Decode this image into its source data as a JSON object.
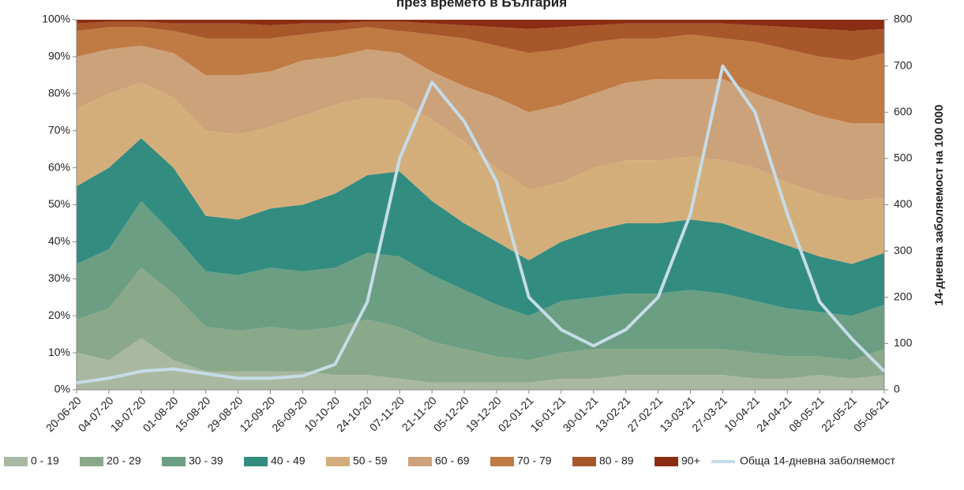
{
  "chart_data": {
    "type": "stacked_area",
    "title": "през времето в България",
    "y2label": "14-дневна заболяемост на 100 000",
    "categories": [
      "20-06-20",
      "04-07-20",
      "18-07-20",
      "01-08-20",
      "15-08-20",
      "29-08-20",
      "12-09-20",
      "26-09-20",
      "10-10-20",
      "24-10-20",
      "07-11-20",
      "21-11-20",
      "05-12-20",
      "19-12-20",
      "02-01-21",
      "16-01-21",
      "30-01-21",
      "13-02-21",
      "27-02-21",
      "13-03-21",
      "27-03-21",
      "10-04-21",
      "24-04-21",
      "08-05-21",
      "22-05-21",
      "05-06-21"
    ],
    "series": [
      {
        "name": "0 - 19",
        "color": "#a9b8a0",
        "values": [
          10,
          8,
          14,
          8,
          5,
          5,
          5,
          5,
          4,
          4,
          3,
          2,
          2,
          2,
          2,
          3,
          3,
          4,
          4,
          4,
          4,
          3,
          3,
          4,
          3,
          4
        ]
      },
      {
        "name": "20 - 29",
        "color": "#8aa88a",
        "values": [
          9,
          14,
          19,
          18,
          12,
          11,
          12,
          11,
          13,
          15,
          14,
          11,
          9,
          7,
          6,
          7,
          8,
          7,
          7,
          7,
          7,
          7,
          6,
          5,
          5,
          7
        ]
      },
      {
        "name": "30 - 39",
        "color": "#6b9e82",
        "values": [
          15,
          16,
          18,
          16,
          15,
          15,
          16,
          16,
          16,
          18,
          19,
          18,
          16,
          14,
          12,
          14,
          14,
          15,
          15,
          16,
          15,
          14,
          13,
          12,
          12,
          12
        ]
      },
      {
        "name": "40 - 49",
        "color": "#338c80",
        "values": [
          21,
          22,
          17,
          18,
          15,
          15,
          16,
          18,
          20,
          21,
          23,
          20,
          18,
          17,
          15,
          16,
          18,
          19,
          19,
          19,
          19,
          18,
          17,
          15,
          14,
          14
        ]
      },
      {
        "name": "50 - 59",
        "color": "#d4ae7a",
        "values": [
          21,
          20,
          15,
          19,
          23,
          23,
          22,
          24,
          24,
          21,
          19,
          22,
          22,
          20,
          19,
          16,
          17,
          17,
          17,
          17,
          17,
          18,
          17,
          17,
          17,
          15
        ]
      },
      {
        "name": "60 - 69",
        "color": "#cca27a",
        "values": [
          14,
          12,
          10,
          12,
          15,
          16,
          15,
          15,
          13,
          13,
          13,
          13,
          15,
          19,
          21,
          21,
          20,
          21,
          22,
          21,
          22,
          20,
          21,
          21,
          21,
          20
        ]
      },
      {
        "name": "70 - 79",
        "color": "#c07a44",
        "values": [
          7,
          6,
          5,
          6,
          10,
          10,
          9,
          7,
          7,
          6,
          6,
          10,
          13,
          14,
          16,
          15,
          14,
          12,
          11,
          12,
          11,
          14,
          15,
          16,
          17,
          19
        ]
      },
      {
        "name": "80 - 89",
        "color": "#a7572a",
        "values": [
          2,
          1.5,
          1.5,
          2,
          4,
          4,
          3.5,
          3,
          2,
          1.5,
          2.5,
          3,
          3.5,
          5,
          6.5,
          6,
          4.5,
          4,
          4,
          3,
          4,
          4.5,
          6,
          7.5,
          8,
          6.5
        ]
      },
      {
        "name": "90+",
        "color": "#8b2d12",
        "values": [
          1,
          0.5,
          0.5,
          1,
          1,
          1,
          1.5,
          1,
          1,
          0.5,
          0.5,
          1,
          1.5,
          2,
          2.5,
          2,
          1.5,
          1,
          1,
          1,
          1,
          1.5,
          2,
          2.5,
          3,
          2.5
        ]
      },
      {
        "name": "Обща 14-дневна заболяемост",
        "color": "#c5dce8",
        "axis": "y2",
        "type": "line",
        "values": [
          15,
          25,
          40,
          45,
          35,
          25,
          25,
          30,
          55,
          190,
          500,
          665,
          580,
          450,
          200,
          130,
          95,
          130,
          200,
          380,
          700,
          600,
          380,
          190,
          110,
          40
        ]
      }
    ],
    "ylim": [
      0,
      100
    ],
    "yticks": [
      {
        "value": 0,
        "label": "0%"
      },
      {
        "value": 10,
        "label": "10%"
      },
      {
        "value": 20,
        "label": "20%"
      },
      {
        "value": 30,
        "label": "30%"
      },
      {
        "value": 40,
        "label": "40%"
      },
      {
        "value": 50,
        "label": "50%"
      },
      {
        "value": 60,
        "label": "60%"
      },
      {
        "value": 70,
        "label": "70%"
      },
      {
        "value": 80,
        "label": "80%"
      },
      {
        "value": 90,
        "label": "90%"
      },
      {
        "value": 100,
        "label": "100%"
      }
    ],
    "y2lim": [
      0,
      800
    ],
    "y2ticks": [
      0,
      100,
      200,
      300,
      400,
      500,
      600,
      700,
      800
    ],
    "legend": "bottom"
  }
}
